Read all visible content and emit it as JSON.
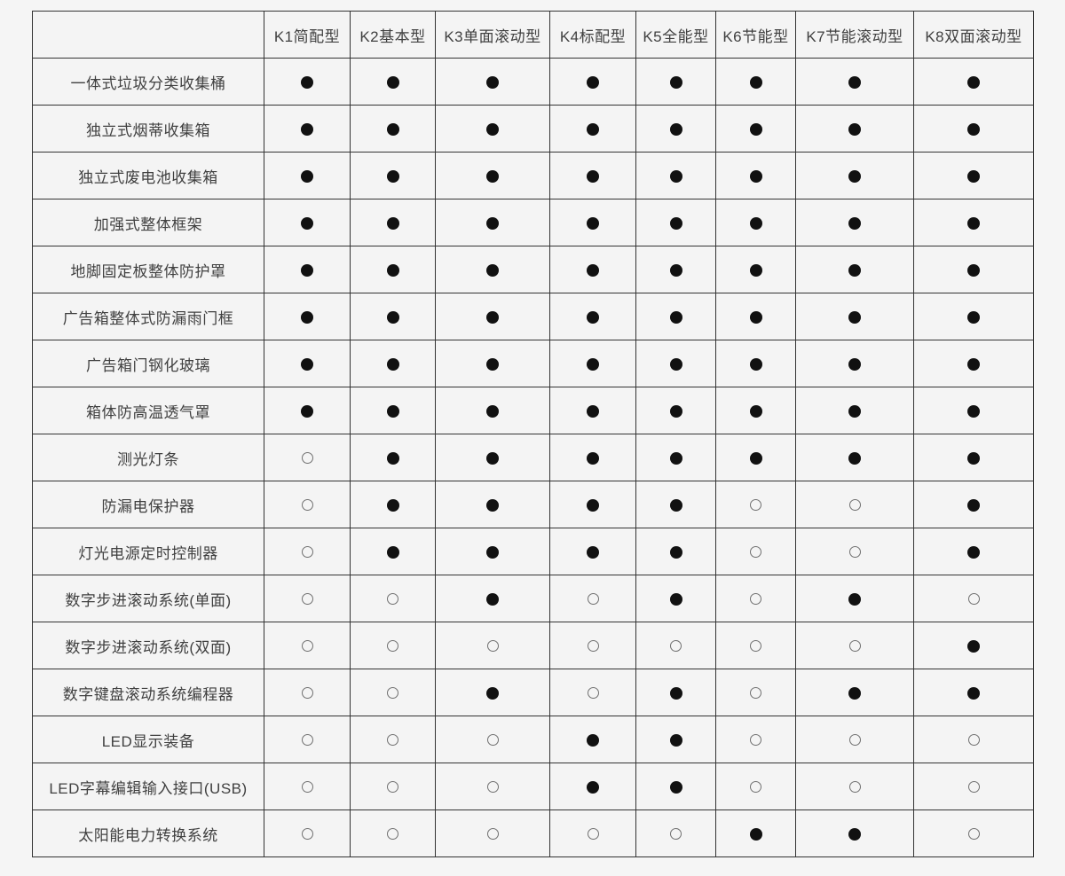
{
  "colors": {
    "background": "#f5f5f5",
    "border": "#333333",
    "text": "#404040",
    "dot_filled": "#111111",
    "dot_hollow": "#707070"
  },
  "markers": {
    "included_symbol": "●",
    "excluded_symbol": "○"
  },
  "chart_data": {
    "type": "table",
    "corner_label": "",
    "columns": [
      "K1简配型",
      "K2基本型",
      "K3单面滚动型",
      "K4标配型",
      "K5全能型",
      "K6节能型",
      "K7节能滚动型",
      "K8双面滚动型"
    ],
    "rows": [
      {
        "label": "一体式垃圾分类收集桶",
        "values": [
          1,
          1,
          1,
          1,
          1,
          1,
          1,
          1
        ]
      },
      {
        "label": "独立式烟蒂收集箱",
        "values": [
          1,
          1,
          1,
          1,
          1,
          1,
          1,
          1
        ]
      },
      {
        "label": "独立式废电池收集箱",
        "values": [
          1,
          1,
          1,
          1,
          1,
          1,
          1,
          1
        ]
      },
      {
        "label": "加强式整体框架",
        "values": [
          1,
          1,
          1,
          1,
          1,
          1,
          1,
          1
        ]
      },
      {
        "label": "地脚固定板整体防护罩",
        "values": [
          1,
          1,
          1,
          1,
          1,
          1,
          1,
          1
        ]
      },
      {
        "label": "广告箱整体式防漏雨门框",
        "values": [
          1,
          1,
          1,
          1,
          1,
          1,
          1,
          1
        ]
      },
      {
        "label": "广告箱门钢化玻璃",
        "values": [
          1,
          1,
          1,
          1,
          1,
          1,
          1,
          1
        ]
      },
      {
        "label": "箱体防高温透气罩",
        "values": [
          1,
          1,
          1,
          1,
          1,
          1,
          1,
          1
        ]
      },
      {
        "label": "测光灯条",
        "values": [
          0,
          1,
          1,
          1,
          1,
          1,
          1,
          1
        ]
      },
      {
        "label": "防漏电保护器",
        "values": [
          0,
          1,
          1,
          1,
          1,
          0,
          0,
          1
        ]
      },
      {
        "label": "灯光电源定时控制器",
        "values": [
          0,
          1,
          1,
          1,
          1,
          0,
          0,
          1
        ]
      },
      {
        "label": "数字步进滚动系统(单面)",
        "values": [
          0,
          0,
          1,
          0,
          1,
          0,
          1,
          0
        ]
      },
      {
        "label": "数字步进滚动系统(双面)",
        "values": [
          0,
          0,
          0,
          0,
          0,
          0,
          0,
          1
        ]
      },
      {
        "label": "数字键盘滚动系统编程器",
        "values": [
          0,
          0,
          1,
          0,
          1,
          0,
          1,
          1
        ]
      },
      {
        "label": "LED显示装备",
        "values": [
          0,
          0,
          0,
          1,
          1,
          0,
          0,
          0
        ]
      },
      {
        "label": "LED字幕编辑输入接口(USB)",
        "values": [
          0,
          0,
          0,
          1,
          1,
          0,
          0,
          0
        ]
      },
      {
        "label": "太阳能电力转换系统",
        "values": [
          0,
          0,
          0,
          0,
          0,
          1,
          1,
          0
        ]
      }
    ],
    "value_legend": {
      "1": "included (filled dot ●)",
      "0": "not included (hollow dot ○)"
    }
  }
}
